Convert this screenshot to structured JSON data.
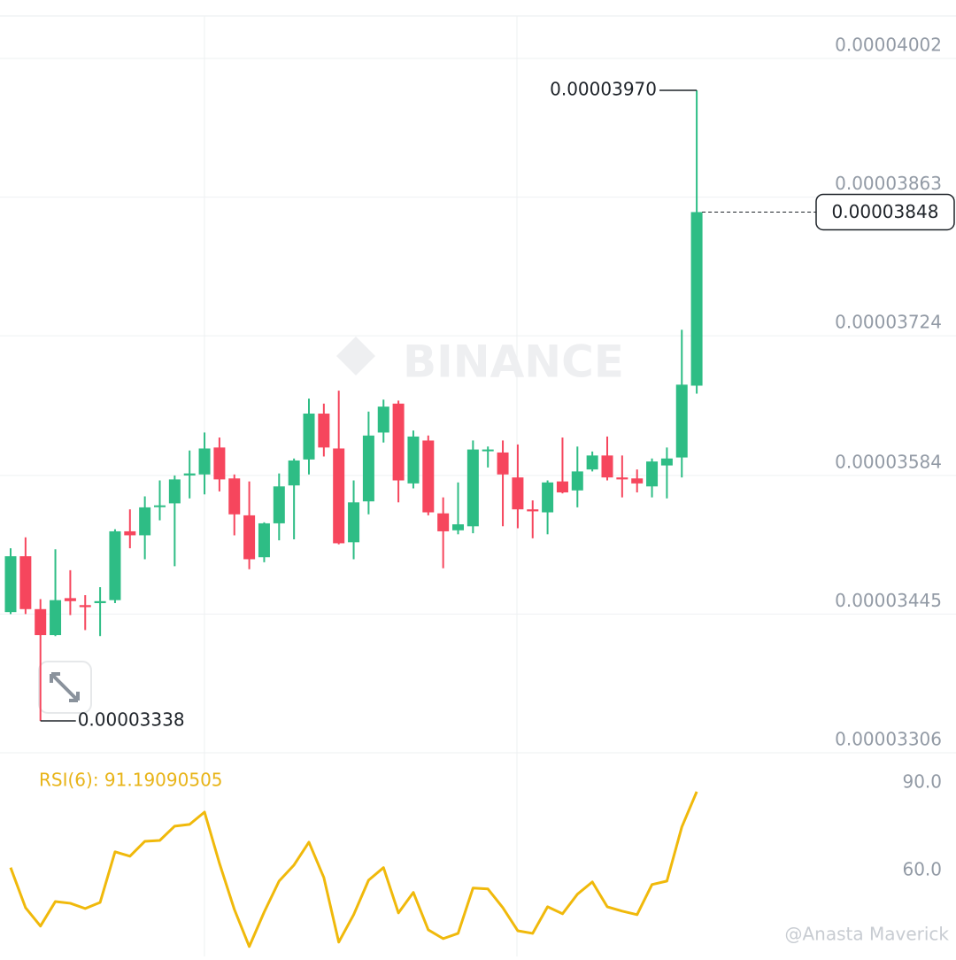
{
  "chart_data": {
    "type": "candlestick",
    "ylim": [
      3.306e-05,
      4.0606e-05
    ],
    "yticks": [
      4.002e-05,
      3.863e-05,
      3.724e-05,
      3.584e-05,
      3.445e-05,
      3.306e-05
    ],
    "grid": true,
    "up_color": "#2ebd85",
    "down_color": "#f6465d",
    "open": [
      3.447e-05,
      3.503e-05,
      3.45e-05,
      3.424e-05,
      3.461e-05,
      3.454e-05,
      3.456e-05,
      3.459e-05,
      3.528e-05,
      3.524e-05,
      3.553e-05,
      3.556e-05,
      3.584e-05,
      3.585e-05,
      3.612e-05,
      3.581e-05,
      3.544e-05,
      3.502e-05,
      3.536e-05,
      3.574e-05,
      3.6e-05,
      3.646e-05,
      3.611e-05,
      3.517e-05,
      3.558e-05,
      3.627e-05,
      3.656e-05,
      3.576e-05,
      3.619e-05,
      3.546e-05,
      3.529e-05,
      3.533e-05,
      3.609e-05,
      3.607e-05,
      3.582e-05,
      3.55e-05,
      3.547e-05,
      3.578e-05,
      3.569e-05,
      3.59e-05,
      3.604e-05,
      3.582e-05,
      3.581e-05,
      3.573e-05,
      3.594e-05,
      3.602e-05,
      3.674e-05
    ],
    "high": [
      3.511e-05,
      3.522e-05,
      3.46e-05,
      3.51e-05,
      3.489e-05,
      3.464e-05,
      3.472e-05,
      3.53e-05,
      3.55e-05,
      3.563e-05,
      3.579e-05,
      3.584e-05,
      3.609e-05,
      3.627e-05,
      3.622e-05,
      3.585e-05,
      3.578e-05,
      3.537e-05,
      3.586e-05,
      3.601e-05,
      3.661e-05,
      3.656e-05,
      3.669e-05,
      3.579e-05,
      3.648e-05,
      3.66e-05,
      3.659e-05,
      3.629e-05,
      3.624e-05,
      3.562e-05,
      3.577e-05,
      3.619e-05,
      3.613e-05,
      3.619e-05,
      3.615e-05,
      3.559e-05,
      3.579e-05,
      3.622e-05,
      3.613e-05,
      3.608e-05,
      3.623e-05,
      3.604e-05,
      3.59e-05,
      3.601e-05,
      3.612e-05,
      3.73e-05,
      3.97e-05
    ],
    "low": [
      3.445e-05,
      3.445e-05,
      3.338e-05,
      3.423e-05,
      3.444e-05,
      3.429e-05,
      3.423e-05,
      3.456e-05,
      3.511e-05,
      3.5e-05,
      3.539e-05,
      3.493e-05,
      3.561e-05,
      3.565e-05,
      3.568e-05,
      3.524e-05,
      3.49e-05,
      3.497e-05,
      3.519e-05,
      3.52e-05,
      3.585e-05,
      3.603e-05,
      3.515e-05,
      3.5e-05,
      3.545e-05,
      3.617e-05,
      3.557e-05,
      3.571e-05,
      3.544e-05,
      3.491e-05,
      3.525e-05,
      3.526e-05,
      3.592e-05,
      3.533e-05,
      3.531e-05,
      3.521e-05,
      3.525e-05,
      3.566e-05,
      3.552e-05,
      3.588e-05,
      3.579e-05,
      3.562e-05,
      3.567e-05,
      3.562e-05,
      3.561e-05,
      3.582e-05,
      3.666e-05
    ],
    "close": [
      3.503e-05,
      3.45e-05,
      3.424e-05,
      3.459e-05,
      3.458e-05,
      3.452e-05,
      3.458e-05,
      3.528e-05,
      3.524e-05,
      3.552e-05,
      3.554e-05,
      3.58e-05,
      3.586e-05,
      3.611e-05,
      3.58e-05,
      3.545e-05,
      3.5e-05,
      3.536e-05,
      3.573e-05,
      3.599e-05,
      3.646e-05,
      3.612e-05,
      3.516e-05,
      3.557e-05,
      3.624e-05,
      3.653e-05,
      3.579e-05,
      3.623e-05,
      3.547e-05,
      3.528e-05,
      3.535e-05,
      3.61e-05,
      3.61e-05,
      3.585e-05,
      3.55e-05,
      3.548e-05,
      3.577e-05,
      3.567e-05,
      3.588e-05,
      3.604e-05,
      3.582e-05,
      3.58e-05,
      3.576e-05,
      3.598e-05,
      3.601e-05,
      3.675e-05,
      3.848e-05
    ],
    "high_label": "0.00003970",
    "low_label": "0.00003338",
    "last_price_label": "0.00003848",
    "watermark": "BINANCE",
    "credit": "@Anasta Maverick",
    "rsi": {
      "type": "line",
      "title": "RSI(6): 91.19090505",
      "color": "#f0b90b",
      "ylim": [
        34.8,
        104.5
      ],
      "yticks": [
        {
          "value": 90,
          "label": "90.0"
        },
        {
          "value": 60,
          "label": "60.0"
        }
      ],
      "values": [
        65.2,
        51.5,
        45.2,
        53.6,
        53.0,
        51.2,
        53.3,
        70.6,
        69.1,
        74.2,
        74.5,
        79.4,
        80.0,
        84.2,
        66.7,
        50.9,
        38.2,
        50.0,
        60.6,
        66.1,
        73.9,
        61.8,
        39.7,
        49.1,
        60.9,
        65.2,
        49.7,
        56.7,
        43.9,
        40.9,
        42.7,
        58.2,
        57.9,
        51.5,
        43.6,
        42.7,
        51.8,
        49.4,
        56.1,
        60.3,
        51.8,
        50.3,
        49.1,
        59.4,
        60.6,
        79.1,
        91.19
      ]
    }
  }
}
